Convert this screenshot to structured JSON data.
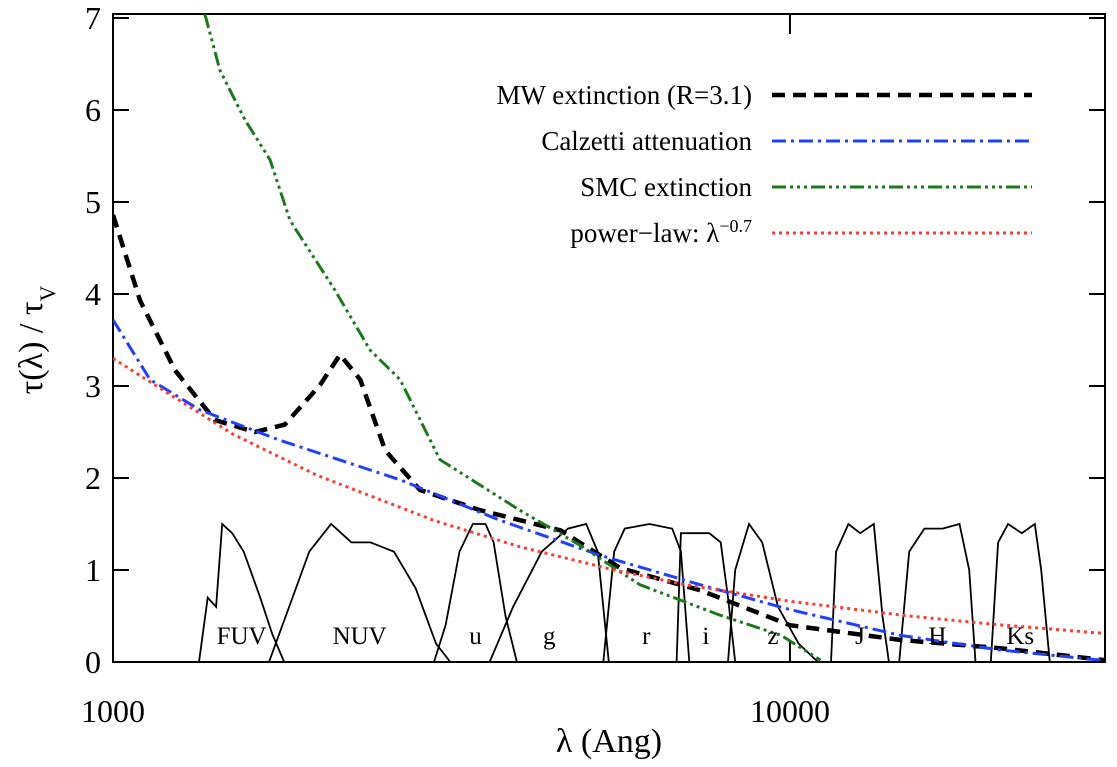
{
  "chart_data": {
    "type": "line",
    "x_label": "λ (Ang)",
    "y_label": "τ(λ) / τV",
    "xscale": "log",
    "xlim": [
      1000,
      29200
    ],
    "ylim": [
      0,
      7
    ],
    "xticks": [
      1000,
      10000
    ],
    "yticks": [
      0,
      1,
      2,
      3,
      4,
      5,
      6,
      7
    ],
    "legend": "upper right",
    "series": [
      {
        "name": "MW extinction (R=3.1)",
        "color": "#000000",
        "style": "dashed",
        "x": [
          1000,
          1096,
          1235,
          1414,
          1620,
          1794,
          2022,
          2164,
          2318,
          2524,
          2842,
          3486,
          4583,
          5620,
          7366,
          10000,
          14540,
          20450,
          29200
        ],
        "values": [
          4.86,
          3.93,
          3.17,
          2.63,
          2.5,
          2.58,
          3.01,
          3.34,
          3.07,
          2.3,
          1.87,
          1.65,
          1.43,
          1.02,
          0.78,
          0.4,
          0.24,
          0.15,
          0.02
        ]
      },
      {
        "name": "Calzetti attenuation",
        "color": "#1f3fff",
        "style": "dash-dot",
        "x": [
          1000,
          1134,
          1344,
          1765,
          2655,
          3730,
          5240,
          7366,
          10000,
          14540,
          20450,
          28800
        ],
        "values": [
          3.72,
          3.07,
          2.74,
          2.41,
          1.98,
          1.54,
          1.16,
          0.84,
          0.57,
          0.29,
          0.13,
          0.02
        ]
      },
      {
        "name": "SMC extinction",
        "color": "#1a7a1a",
        "style": "dash-dot-dot",
        "x": [
          1367,
          1439,
          1567,
          1706,
          1826,
          2128,
          2398,
          2655,
          3040,
          3990,
          4895,
          6000,
          7880,
          9700,
          11100
        ],
        "values": [
          7.04,
          6.43,
          5.89,
          5.46,
          4.8,
          4.04,
          3.39,
          3.07,
          2.2,
          1.65,
          1.27,
          0.84,
          0.51,
          0.29,
          0.02
        ]
      },
      {
        "name": "power−law: λ−0.7",
        "color": "#ff3b30",
        "style": "dotted",
        "x": [
          1000,
          1500,
          2000,
          3000,
          4000,
          5500,
          7000,
          10000,
          15000,
          20000,
          29200
        ],
        "values": [
          3.3,
          2.48,
          2.03,
          1.53,
          1.25,
          1.0,
          0.84,
          0.66,
          0.5,
          0.41,
          0.31
        ]
      }
    ],
    "filters": [
      {
        "name": "FUV",
        "x": [
          1340,
          1380,
          1420,
          1450,
          1500,
          1560,
          1650,
          1720,
          1790
        ],
        "values": [
          0,
          0.7,
          0.6,
          1.5,
          1.4,
          1.2,
          0.7,
          0.3,
          0
        ]
      },
      {
        "name": "NUV",
        "x": [
          1700,
          1800,
          1950,
          2100,
          2250,
          2400,
          2600,
          2800,
          3000,
          3150
        ],
        "values": [
          0,
          0.5,
          1.2,
          1.5,
          1.3,
          1.3,
          1.2,
          0.8,
          0.2,
          0
        ]
      },
      {
        "name": "u",
        "x": [
          2980,
          3100,
          3250,
          3400,
          3550,
          3650,
          3800,
          3950
        ],
        "values": [
          0,
          0.4,
          1.2,
          1.5,
          1.5,
          1.3,
          0.5,
          0
        ]
      },
      {
        "name": "g",
        "x": [
          3600,
          3900,
          4300,
          4700,
          5000,
          5200,
          5400
        ],
        "values": [
          0,
          0.6,
          1.2,
          1.45,
          1.5,
          1.2,
          0
        ]
      },
      {
        "name": "r",
        "x": [
          5300,
          5500,
          5700,
          6200,
          6700,
          6900,
          7100
        ],
        "values": [
          0,
          1.2,
          1.45,
          1.5,
          1.45,
          1.2,
          0
        ]
      },
      {
        "name": "i",
        "x": [
          6800,
          6900,
          7200,
          7600,
          7900,
          8100,
          8300
        ],
        "values": [
          0,
          1.4,
          1.4,
          1.4,
          1.3,
          0.7,
          0
        ]
      },
      {
        "name": "z",
        "x": [
          8100,
          8300,
          8700,
          9100,
          9600,
          10300,
          11000
        ],
        "values": [
          0,
          1.0,
          1.5,
          1.3,
          0.6,
          0.2,
          0
        ]
      },
      {
        "name": "J",
        "x": [
          11500,
          11700,
          12200,
          12700,
          13300,
          13700,
          14000
        ],
        "values": [
          0,
          1.2,
          1.5,
          1.4,
          1.5,
          0.5,
          0
        ]
      },
      {
        "name": "H",
        "x": [
          14500,
          15000,
          15800,
          16800,
          17800,
          18400,
          18800
        ],
        "values": [
          0,
          1.2,
          1.45,
          1.45,
          1.5,
          1.0,
          0
        ]
      },
      {
        "name": "Ks",
        "x": [
          19800,
          20300,
          21000,
          22000,
          23000,
          23500,
          24200
        ],
        "values": [
          0,
          1.3,
          1.5,
          1.4,
          1.5,
          1.0,
          0
        ]
      }
    ]
  }
}
